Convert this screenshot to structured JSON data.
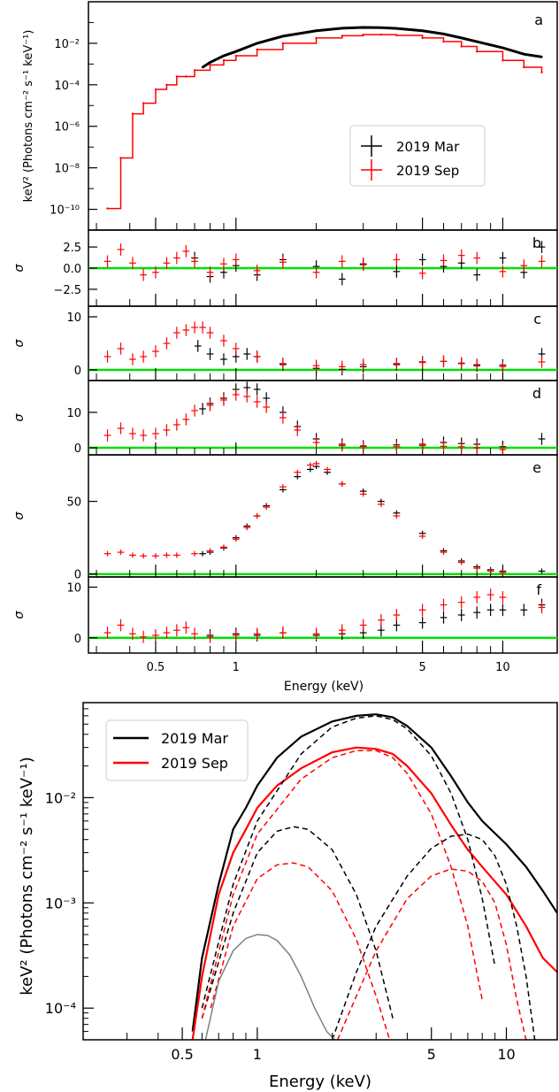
{
  "chart_data": [
    {
      "type": "line",
      "panel": "a",
      "ylabel": "keV² (Photons cm⁻² s⁻¹ keV⁻¹)",
      "yscale": "log",
      "xscale": "log",
      "xlim": [
        0.28,
        16
      ],
      "ylim": [
        1e-11,
        1
      ],
      "ytick_labels": [
        "10⁻¹⁰",
        "10⁻⁸",
        "10⁻⁶",
        "10⁻⁴",
        "10⁻²"
      ],
      "legend": [
        "2019 Mar",
        "2019 Sep"
      ],
      "legend_position": "center-right",
      "series": [
        {
          "name": "2019 Mar",
          "color": "#000000",
          "x": [
            0.75,
            0.8,
            0.9,
            1.0,
            1.2,
            1.5,
            2.0,
            2.5,
            3.0,
            3.5,
            4.0,
            5.0,
            6.0,
            7.0,
            8.0,
            10.0,
            12.0,
            14.0
          ],
          "y": [
            0.0007,
            0.0012,
            0.0025,
            0.004,
            0.01,
            0.022,
            0.04,
            0.053,
            0.058,
            0.057,
            0.052,
            0.04,
            0.028,
            0.018,
            0.012,
            0.006,
            0.003,
            0.0022
          ]
        },
        {
          "name": "2019 Sep",
          "color": "#ff0000",
          "x": [
            0.33,
            0.37,
            0.41,
            0.45,
            0.5,
            0.55,
            0.6,
            0.65,
            0.7,
            0.8,
            0.9,
            1.0,
            1.2,
            1.5,
            2.0,
            2.5,
            3.0,
            3.5,
            4.0,
            5.0,
            6.0,
            7.0,
            8.0,
            10.0,
            12.0,
            14.0
          ],
          "y": [
            1.1e-10,
            3e-08,
            4e-06,
            1.3e-05,
            6e-05,
            0.0001,
            0.00025,
            0.00025,
            0.0005,
            0.0009,
            0.0015,
            0.0025,
            0.005,
            0.01,
            0.018,
            0.023,
            0.026,
            0.026,
            0.024,
            0.018,
            0.012,
            0.007,
            0.004,
            0.0015,
            0.0007,
            0.0004
          ]
        }
      ]
    },
    {
      "type": "scatter",
      "panel": "b",
      "ylabel": "σ",
      "ylim": [
        -4.5,
        4.5
      ],
      "ytick_labels": [
        "−2.5",
        "0.0",
        "2.5"
      ],
      "zero_line_color": "#00e000",
      "series": [
        {
          "name": "2019 Mar",
          "color": "#000000",
          "x": [
            0.7,
            0.8,
            0.9,
            1.0,
            1.2,
            1.5,
            2.0,
            2.5,
            3.0,
            4.0,
            5.0,
            6.0,
            7.0,
            8.0,
            10.0,
            12.0,
            14.0
          ],
          "y": [
            1.2,
            -1.0,
            -0.5,
            0.3,
            -0.8,
            1.0,
            0.2,
            -1.3,
            0.5,
            -0.4,
            1.0,
            0.2,
            0.6,
            -0.8,
            1.2,
            -0.5,
            2.5
          ]
        },
        {
          "name": "2019 Sep",
          "color": "#ff0000",
          "x": [
            0.33,
            0.37,
            0.41,
            0.45,
            0.5,
            0.55,
            0.6,
            0.65,
            0.7,
            0.8,
            0.9,
            1.0,
            1.2,
            1.5,
            2.0,
            2.5,
            3.0,
            4.0,
            5.0,
            6.0,
            7.0,
            8.0,
            10.0,
            12.0,
            14.0
          ],
          "y": [
            0.8,
            2.2,
            0.6,
            -0.8,
            -0.5,
            0.6,
            1.2,
            2.0,
            0.8,
            -0.5,
            0.5,
            1.0,
            -0.3,
            0.7,
            -0.5,
            0.8,
            0.4,
            1.0,
            -0.6,
            0.9,
            1.5,
            1.2,
            -0.4,
            0.3,
            0.8
          ]
        }
      ]
    },
    {
      "type": "scatter",
      "panel": "c",
      "ylabel": "σ",
      "ylim": [
        -2,
        12
      ],
      "ytick_labels": [
        "0",
        "10"
      ],
      "zero_line_color": "#00e000",
      "series": [
        {
          "name": "2019 Mar",
          "color": "#000000",
          "x": [
            0.72,
            0.8,
            0.9,
            1.0,
            1.1,
            1.2,
            1.5,
            2.0,
            2.5,
            3.0,
            4.0,
            5.0,
            6.0,
            7.0,
            8.0,
            10.0,
            14.0
          ],
          "y": [
            4.5,
            3.0,
            2.0,
            2.5,
            3.0,
            2.5,
            1.0,
            0.3,
            0.1,
            0.6,
            1.0,
            1.5,
            1.6,
            1.2,
            0.8,
            0.9,
            3.0
          ]
        },
        {
          "name": "2019 Sep",
          "color": "#ff0000",
          "x": [
            0.33,
            0.37,
            0.41,
            0.45,
            0.5,
            0.55,
            0.6,
            0.65,
            0.7,
            0.75,
            0.8,
            0.9,
            1.0,
            1.2,
            1.5,
            2.0,
            2.5,
            3.0,
            4.0,
            5.0,
            6.0,
            7.0,
            8.0,
            10.0,
            14.0
          ],
          "y": [
            2.5,
            4.0,
            2.0,
            2.5,
            3.5,
            5.0,
            7.0,
            7.5,
            8.0,
            8.0,
            7.0,
            5.5,
            4.0,
            2.5,
            1.2,
            0.8,
            0.6,
            1.0,
            1.2,
            1.4,
            1.6,
            1.3,
            1.0,
            0.6,
            1.5
          ]
        }
      ]
    },
    {
      "type": "scatter",
      "panel": "d",
      "ylabel": "σ",
      "ylim": [
        -2,
        19
      ],
      "ytick_labels": [
        "0",
        "10"
      ],
      "zero_line_color": "#00e000",
      "series": [
        {
          "name": "2019 Mar",
          "color": "#000000",
          "x": [
            0.75,
            0.8,
            0.9,
            1.0,
            1.1,
            1.2,
            1.3,
            1.5,
            1.7,
            2.0,
            2.5,
            3.0,
            4.0,
            5.0,
            6.0,
            7.0,
            8.0,
            10.0,
            14.0
          ],
          "y": [
            11.0,
            12.5,
            14.0,
            16.5,
            17.0,
            16.5,
            14.0,
            10.0,
            6.0,
            2.5,
            1.0,
            0.5,
            0.8,
            1.0,
            1.5,
            1.2,
            1.0,
            0.3,
            2.5
          ]
        },
        {
          "name": "2019 Sep",
          "color": "#ff0000",
          "x": [
            0.33,
            0.37,
            0.41,
            0.45,
            0.5,
            0.55,
            0.6,
            0.65,
            0.7,
            0.8,
            0.9,
            1.0,
            1.1,
            1.2,
            1.3,
            1.5,
            1.7,
            2.0,
            2.5,
            3.0,
            4.0,
            5.0,
            6.0,
            7.0,
            8.0,
            10.0
          ],
          "y": [
            3.5,
            5.5,
            4.0,
            3.5,
            4.0,
            5.0,
            6.5,
            8.0,
            10.5,
            12.0,
            13.5,
            15.0,
            14.5,
            13.0,
            11.5,
            8.5,
            5.0,
            1.5,
            0.6,
            0.3,
            0.3,
            0.6,
            0.4,
            0.3,
            0.0,
            -0.5
          ]
        }
      ]
    },
    {
      "type": "scatter",
      "panel": "e",
      "ylabel": "σ",
      "ylim": [
        -2,
        82
      ],
      "ytick_labels": [
        "0",
        "50"
      ],
      "zero_line_color": "#00e000",
      "series": [
        {
          "name": "2019 Mar",
          "color": "#000000",
          "x": [
            0.75,
            0.8,
            0.9,
            1.0,
            1.1,
            1.2,
            1.3,
            1.5,
            1.7,
            1.9,
            2.0,
            2.2,
            2.5,
            3.0,
            3.5,
            4.0,
            5.0,
            6.0,
            7.0,
            8.0,
            9.0,
            10.0,
            14.0
          ],
          "y": [
            14.0,
            15.0,
            18.0,
            25.0,
            33.0,
            40.0,
            47.0,
            58.0,
            67.0,
            72.0,
            74.0,
            70.0,
            62.0,
            57.0,
            50.0,
            42.0,
            28.0,
            16.0,
            9.0,
            5.0,
            3.0,
            2.0,
            2.0
          ]
        },
        {
          "name": "2019 Sep",
          "color": "#ff0000",
          "x": [
            0.33,
            0.37,
            0.41,
            0.45,
            0.5,
            0.55,
            0.6,
            0.7,
            0.8,
            0.9,
            1.0,
            1.1,
            1.2,
            1.3,
            1.5,
            1.7,
            1.9,
            2.0,
            2.2,
            2.5,
            3.0,
            3.5,
            4.0,
            5.0,
            6.0,
            7.0,
            8.0,
            9.0,
            10.0
          ],
          "y": [
            14.0,
            15.0,
            13.0,
            12.5,
            12.5,
            13.0,
            13.0,
            14.0,
            16.0,
            18.5,
            24.0,
            32.0,
            40.0,
            46.0,
            60.0,
            70.0,
            75.0,
            76.0,
            72.0,
            62.0,
            55.0,
            48.0,
            40.0,
            26.0,
            15.0,
            8.0,
            4.0,
            2.0,
            1.0
          ]
        }
      ]
    },
    {
      "type": "scatter",
      "panel": "f",
      "ylabel": "σ",
      "ylim": [
        -3,
        12
      ],
      "ytick_labels": [
        "0",
        "10"
      ],
      "zero_line_color": "#00e000",
      "series": [
        {
          "name": "2019 Mar",
          "color": "#000000",
          "x": [
            0.8,
            1.0,
            1.2,
            1.5,
            2.0,
            2.5,
            3.0,
            3.5,
            4.0,
            5.0,
            6.0,
            7.0,
            8.0,
            9.0,
            10.0,
            12.0,
            14.0
          ],
          "y": [
            0.5,
            0.8,
            0.5,
            1.0,
            0.5,
            0.8,
            1.0,
            1.5,
            2.5,
            3.0,
            4.0,
            4.5,
            5.0,
            5.5,
            5.5,
            5.5,
            6.5
          ]
        },
        {
          "name": "2019 Sep",
          "color": "#ff0000",
          "x": [
            0.33,
            0.37,
            0.41,
            0.45,
            0.5,
            0.55,
            0.6,
            0.65,
            0.7,
            0.8,
            1.0,
            1.2,
            1.5,
            2.0,
            2.5,
            3.0,
            3.5,
            4.0,
            5.0,
            6.0,
            7.0,
            8.0,
            9.0,
            10.0,
            14.0
          ],
          "y": [
            1.0,
            2.5,
            0.8,
            0.2,
            0.5,
            1.0,
            1.5,
            2.0,
            0.8,
            0.2,
            0.5,
            0.8,
            1.0,
            0.8,
            1.5,
            2.5,
            3.5,
            4.5,
            5.5,
            6.5,
            7.0,
            8.0,
            8.5,
            8.0,
            6.0
          ]
        }
      ]
    },
    {
      "type": "line",
      "panel": "model",
      "xlabel": "Energy (keV)",
      "ylabel": "keV² (Photons cm⁻² s⁻¹ keV⁻¹)",
      "xscale": "log",
      "yscale": "log",
      "xlim": [
        0.2,
        16
      ],
      "ylim": [
        5e-05,
        0.08
      ],
      "xtick_labels": [
        "0.5",
        "1",
        "5",
        "10"
      ],
      "ytick_labels": [
        "10⁻⁴",
        "10⁻³",
        "10⁻²"
      ],
      "legend": [
        "2019 Mar",
        "2019 Sep"
      ],
      "legend_position": "upper-left",
      "series": [
        {
          "name": "2019 Mar",
          "color": "#000000",
          "style": "solid",
          "x": [
            0.55,
            0.6,
            0.7,
            0.8,
            0.9,
            1.0,
            1.2,
            1.5,
            2.0,
            2.5,
            3.0,
            3.5,
            4.0,
            5.0,
            6.0,
            7.0,
            8.0,
            10.0,
            12.0,
            14.0,
            16.0
          ],
          "y": [
            6e-05,
            0.0003,
            0.0015,
            0.005,
            0.008,
            0.013,
            0.024,
            0.038,
            0.053,
            0.06,
            0.062,
            0.058,
            0.048,
            0.03,
            0.016,
            0.009,
            0.006,
            0.0036,
            0.0022,
            0.0013,
            0.0008
          ]
        },
        {
          "name": "2019 Sep",
          "color": "#ff0000",
          "style": "solid",
          "x": [
            0.55,
            0.6,
            0.7,
            0.8,
            0.9,
            1.0,
            1.2,
            1.5,
            2.0,
            2.5,
            3.0,
            3.5,
            4.0,
            5.0,
            6.0,
            7.0,
            8.0,
            10.0,
            12.0,
            14.0,
            16.0
          ],
          "y": [
            5e-05,
            0.0002,
            0.0012,
            0.003,
            0.005,
            0.008,
            0.013,
            0.019,
            0.027,
            0.03,
            0.029,
            0.026,
            0.02,
            0.011,
            0.0055,
            0.0032,
            0.0022,
            0.0012,
            0.0006,
            0.0003,
            0.00022
          ]
        },
        {
          "name": "",
          "color": "#000000",
          "style": "dashed",
          "x": [
            0.6,
            0.8,
            1.0,
            1.5,
            2.0,
            2.5,
            3.0,
            3.5,
            4.0,
            5.0,
            6.0,
            7.0,
            8.0,
            9.0
          ],
          "y": [
            0.0001,
            0.0015,
            0.006,
            0.026,
            0.047,
            0.057,
            0.06,
            0.055,
            0.045,
            0.025,
            0.011,
            0.004,
            0.0011,
            0.00025
          ]
        },
        {
          "name": "",
          "color": "#000000",
          "style": "dashed",
          "x": [
            0.6,
            0.8,
            1.0,
            1.2,
            1.4,
            1.6,
            2.0,
            2.5,
            3.0,
            3.5
          ],
          "y": [
            8e-05,
            0.0008,
            0.003,
            0.0048,
            0.0053,
            0.005,
            0.0032,
            0.0012,
            0.00035,
            8e-05
          ]
        },
        {
          "name": "",
          "color": "#000000",
          "style": "dashed",
          "x": [
            2.0,
            2.5,
            3.0,
            4.0,
            5.0,
            6.0,
            7.0,
            8.0,
            9.0,
            10.0,
            11.0,
            12.0,
            13.0
          ],
          "y": [
            5e-05,
            0.00022,
            0.0006,
            0.0018,
            0.0033,
            0.0043,
            0.0045,
            0.004,
            0.0028,
            0.0015,
            0.0006,
            0.0002,
            5e-05
          ]
        },
        {
          "name": "",
          "color": "#ff0000",
          "style": "dashed",
          "x": [
            0.6,
            0.8,
            1.0,
            1.5,
            2.0,
            2.5,
            3.0,
            3.5,
            4.0,
            5.0,
            6.0,
            7.0,
            8.0
          ],
          "y": [
            8e-05,
            0.0012,
            0.0045,
            0.015,
            0.024,
            0.028,
            0.028,
            0.024,
            0.017,
            0.007,
            0.0022,
            0.0006,
            0.00012
          ]
        },
        {
          "name": "",
          "color": "#ff0000",
          "style": "dashed",
          "x": [
            0.65,
            0.8,
            1.0,
            1.2,
            1.4,
            1.6,
            2.0,
            2.5,
            3.0,
            3.4
          ],
          "y": [
            0.0001,
            0.0006,
            0.0017,
            0.0023,
            0.0024,
            0.0022,
            0.0013,
            0.00045,
            0.00013,
            5e-05
          ]
        },
        {
          "name": "",
          "color": "#ff0000",
          "style": "dashed",
          "x": [
            2.1,
            2.5,
            3.0,
            4.0,
            5.0,
            6.0,
            7.0,
            8.0,
            9.0,
            10.0,
            11.0,
            12.0
          ],
          "y": [
            5e-05,
            0.00013,
            0.00035,
            0.0011,
            0.0018,
            0.0021,
            0.002,
            0.0016,
            0.001,
            0.0004,
            0.00012,
            5e-05
          ]
        },
        {
          "name": "",
          "color": "#808080",
          "style": "solid",
          "x": [
            0.62,
            0.7,
            0.8,
            0.9,
            1.0,
            1.1,
            1.2,
            1.35,
            1.5,
            1.7,
            1.9,
            2.05
          ],
          "y": [
            5e-05,
            0.00018,
            0.00035,
            0.00046,
            0.0005,
            0.00049,
            0.00044,
            0.00032,
            0.0002,
            0.0001,
            6e-05,
            5e-05
          ]
        }
      ]
    }
  ],
  "panel_letters": [
    "a",
    "b",
    "c",
    "d",
    "e",
    "f"
  ]
}
